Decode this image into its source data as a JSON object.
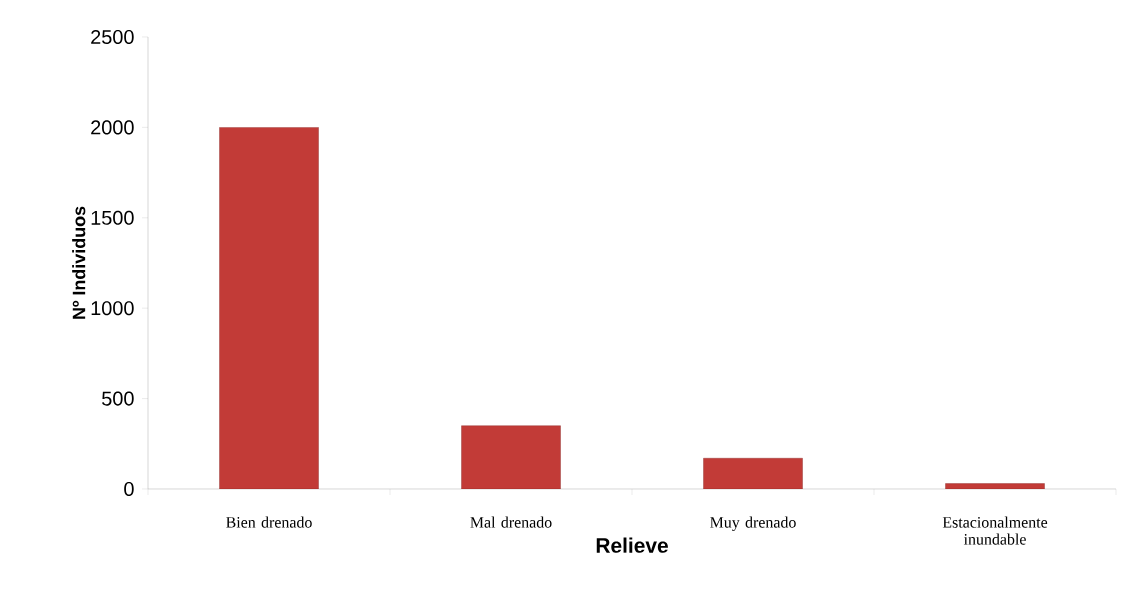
{
  "chart_data": {
    "type": "bar",
    "xlabel": "Relieve",
    "ylabel": "Nº Individuos",
    "categories": [
      "Bien drenado",
      "Mal drenado",
      "Muy drenado",
      "Estacionalmente inundable"
    ],
    "values": [
      2000,
      350,
      170,
      30
    ],
    "color": "#c23b37",
    "ylim": [
      0,
      2500
    ],
    "yticks": [
      0,
      500,
      1000,
      1500,
      2000,
      2500
    ]
  }
}
